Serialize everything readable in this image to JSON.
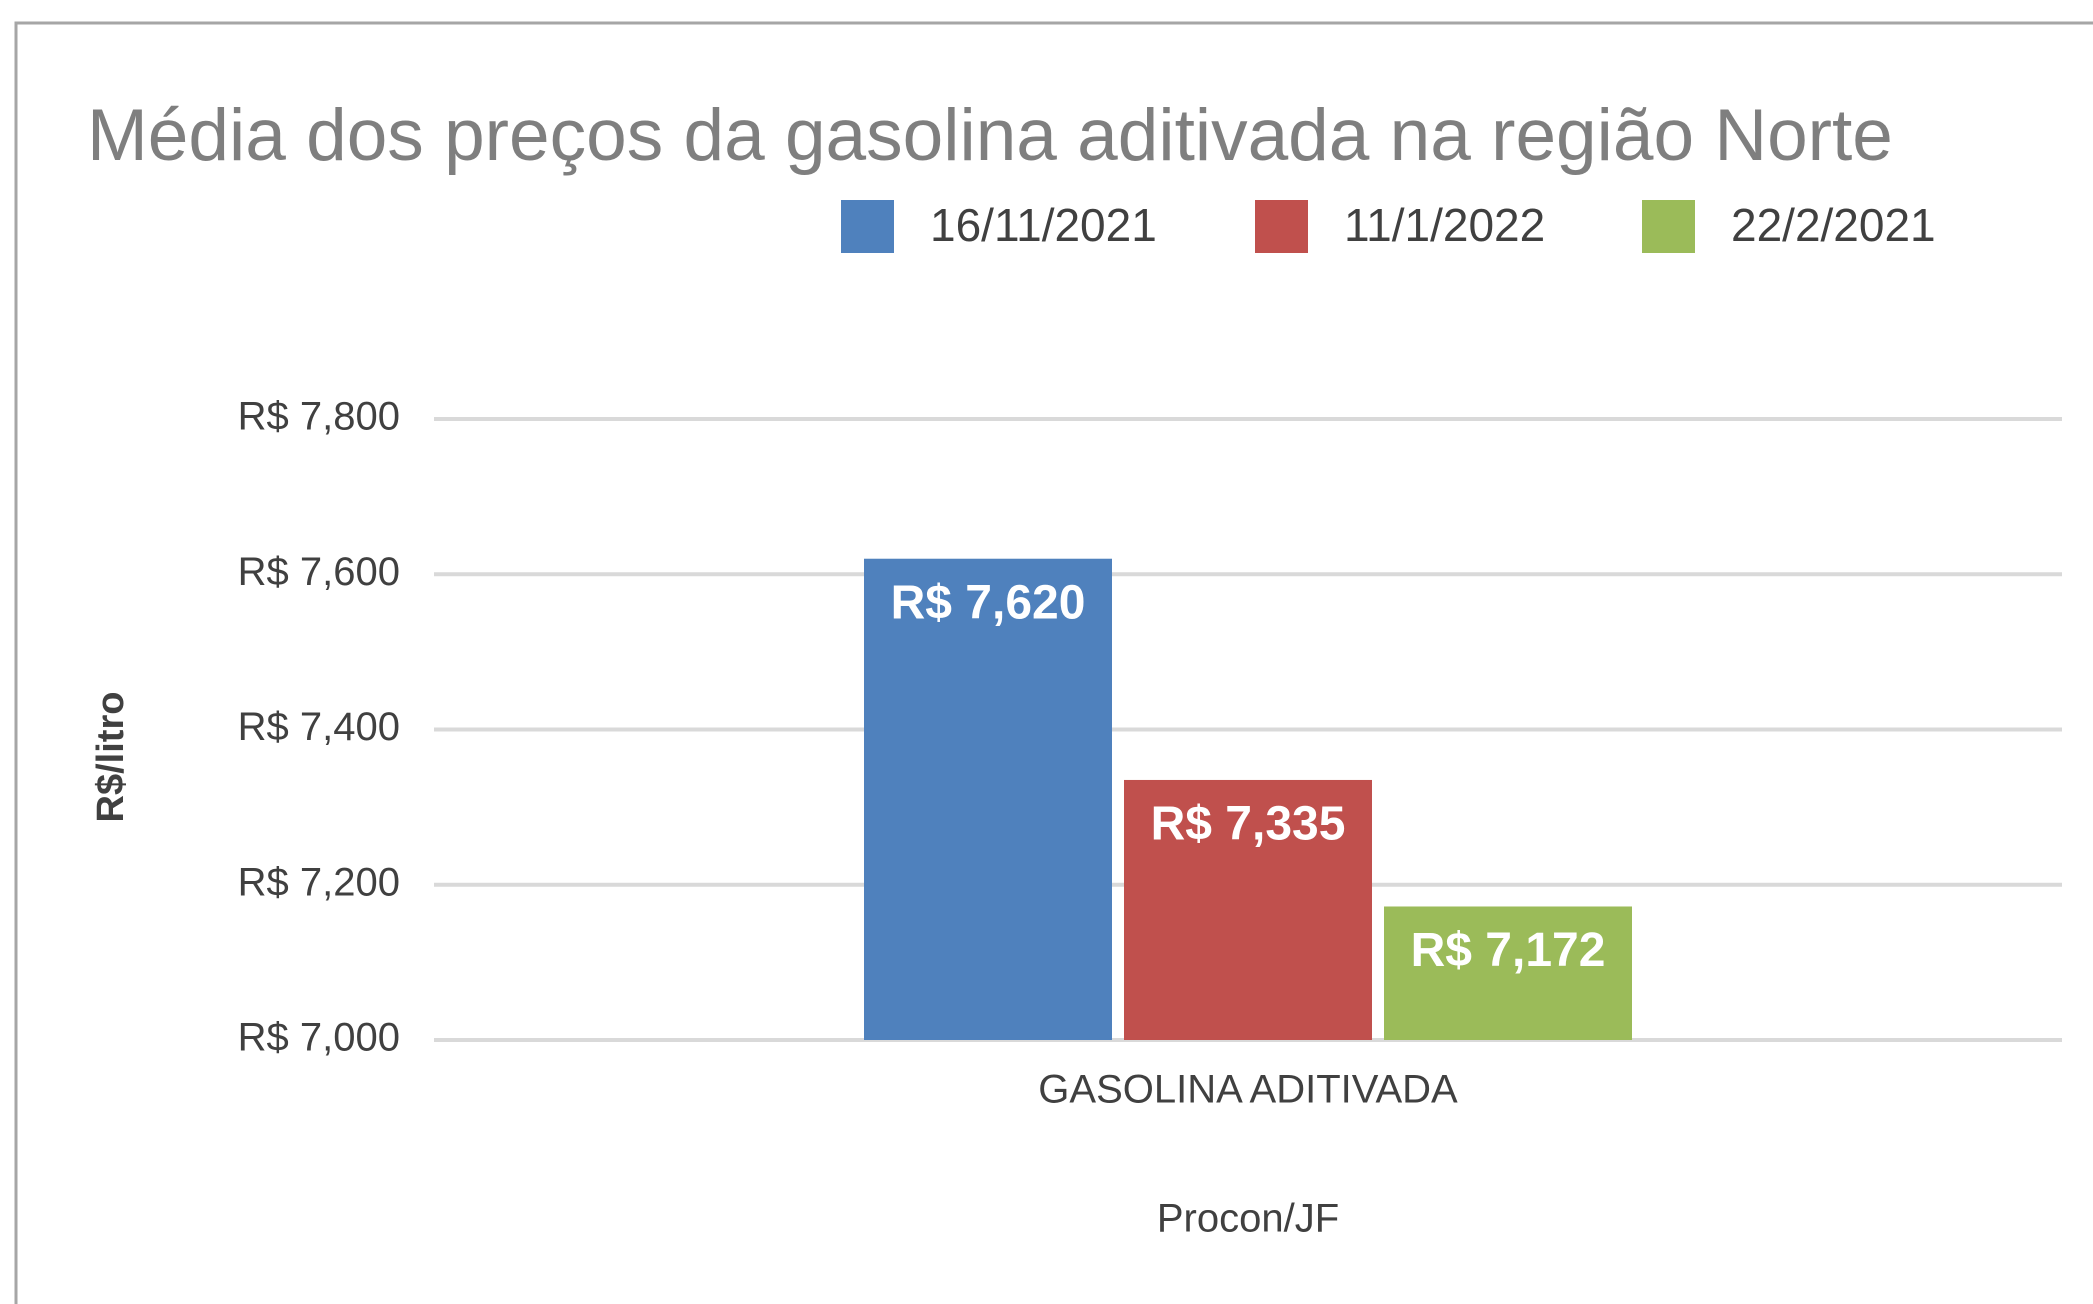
{
  "chart_data": {
    "type": "bar",
    "title": "Média dos preços da gasolina aditivada na região Norte",
    "categories": [
      "GASOLINA ADITIVADA"
    ],
    "series": [
      {
        "name": "16/11/2021",
        "color": "#4f81bd",
        "values": [
          7.62
        ],
        "value_labels": [
          "R$ 7,620"
        ]
      },
      {
        "name": "11/1/2022",
        "color": "#c0504d",
        "values": [
          7.335
        ],
        "value_labels": [
          "R$ 7,335"
        ]
      },
      {
        "name": "22/2/2021",
        "color": "#9bbb59",
        "values": [
          7.172
        ],
        "value_labels": [
          "R$ 7,172"
        ]
      }
    ],
    "y_label": "R$/litro",
    "x_label": "Procon/JF",
    "ylim": [
      7.0,
      7.8
    ],
    "yticks": [
      {
        "value": 7.0,
        "label": "R$ 7,000"
      },
      {
        "value": 7.2,
        "label": "R$ 7,200"
      },
      {
        "value": 7.4,
        "label": "R$ 7,400"
      },
      {
        "value": 7.6,
        "label": "R$ 7,600"
      },
      {
        "value": 7.8,
        "label": "R$ 7,800"
      }
    ],
    "grid": true,
    "legend": "top"
  }
}
